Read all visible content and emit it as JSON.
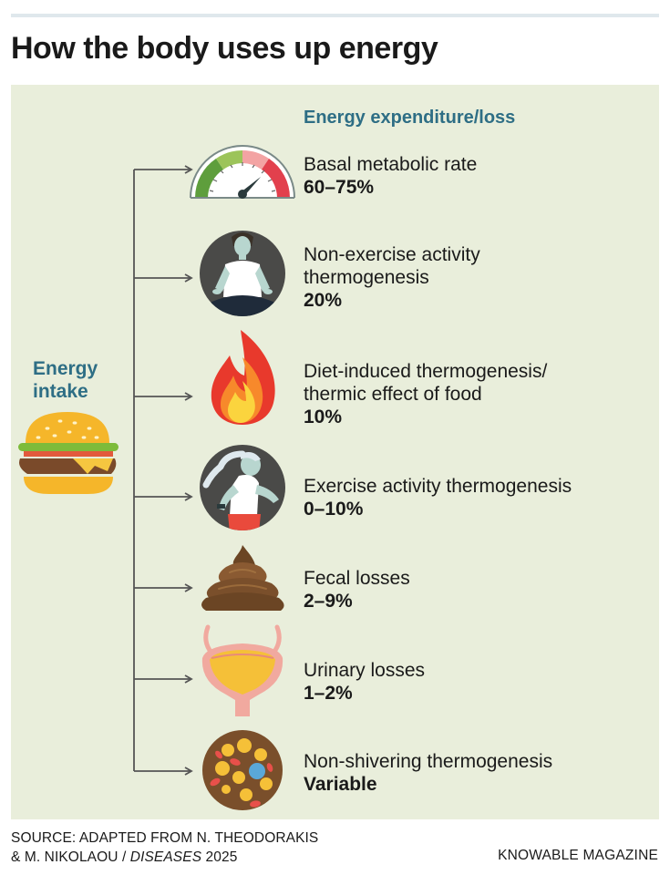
{
  "title": "How the body uses up energy",
  "intake": {
    "label": "Energy intake",
    "icon": "burger-icon"
  },
  "expenditure": {
    "header": "Energy expenditure/loss",
    "items": [
      {
        "label": "Basal metabolic rate",
        "value": "60–75%",
        "icon": "speedometer-gauge-icon"
      },
      {
        "label": "Non-exercise activity thermogenesis",
        "label_display": "Non-exercise activity\nthermogenesis",
        "value": "20%",
        "icon": "meditating-person-icon"
      },
      {
        "label": "Diet-induced thermogenesis/ thermic effect of food",
        "label_display": "Diet-induced thermogenesis/\nthermic effect of food",
        "value": "10%",
        "icon": "flame-icon"
      },
      {
        "label": "Exercise activity thermogenesis",
        "value": "0–10%",
        "icon": "runner-icon"
      },
      {
        "label": "Fecal losses",
        "value": "2–9%",
        "icon": "poop-icon"
      },
      {
        "label": "Urinary losses",
        "value": "1–2%",
        "icon": "bladder-icon"
      },
      {
        "label": "Non-shivering thermogenesis",
        "value": "Variable",
        "icon": "brown-fat-cell-icon"
      }
    ]
  },
  "source": {
    "prefix": "SOURCE: ADAPTED FROM N. THEODORAKIS",
    "line2_prefix": "& M. NIKOLAOU / ",
    "journal": "DISEASES",
    "year": " 2025"
  },
  "credit": "KNOWABLE MAGAZINE",
  "colors": {
    "panel": "#e9eedb",
    "accent_teal": "#2e6e85",
    "connector": "#555555"
  }
}
